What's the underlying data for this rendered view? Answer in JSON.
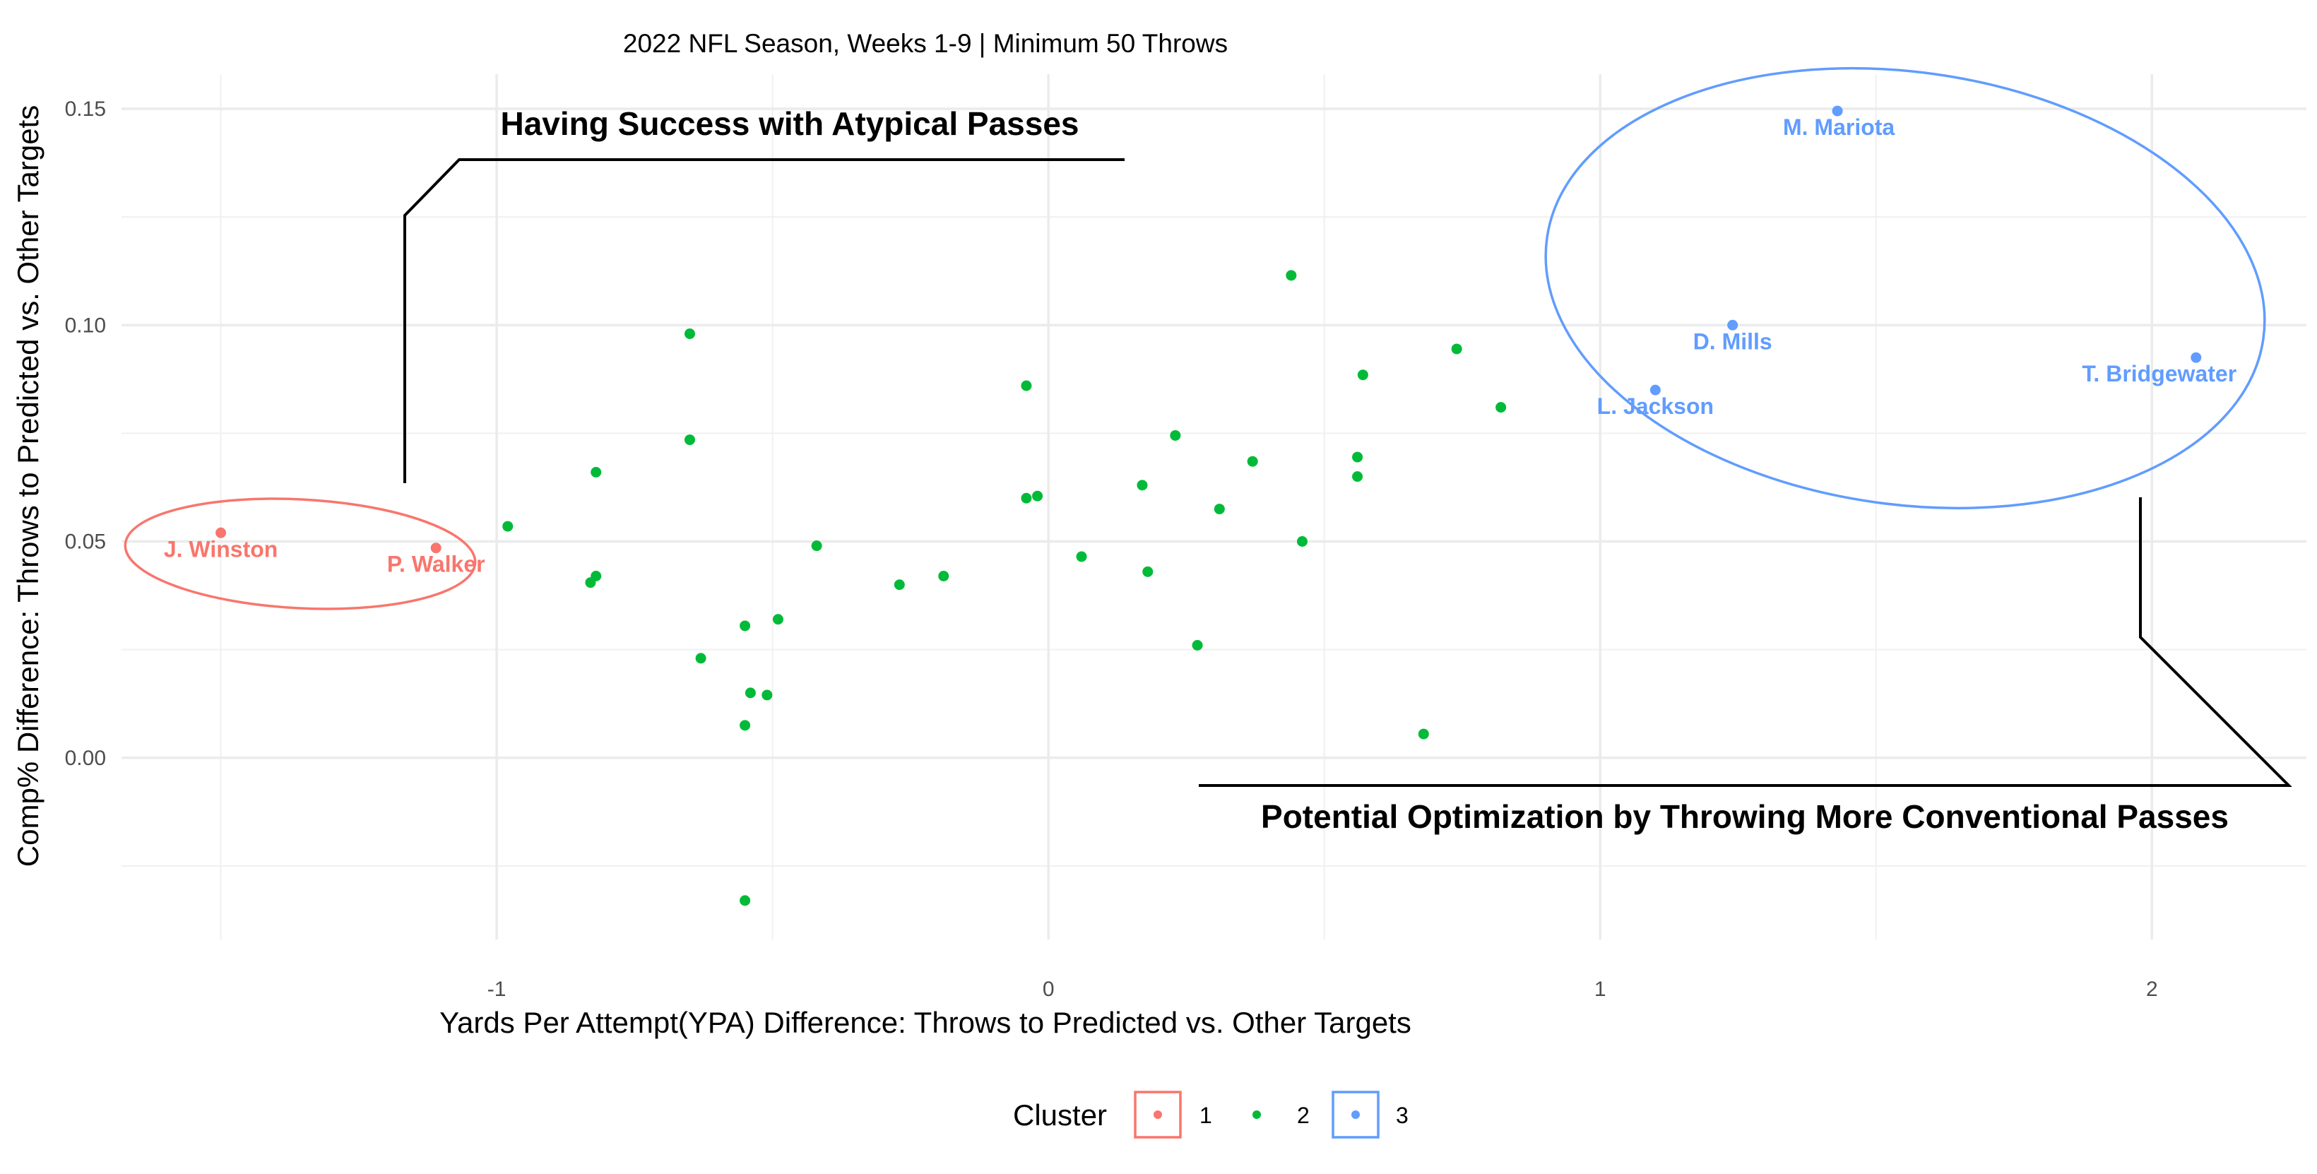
{
  "chart_data": {
    "type": "scatter",
    "title": "2022 NFL Season, Weeks 1-9 | Minimum 50 Throws",
    "xlabel": "Yards Per Attempt(YPA) Difference: Throws to Predicted vs. Other Targets",
    "ylabel": "Comp% Difference: Throws to Predicted vs. Other Targets",
    "xlim": [
      -1.68,
      2.28
    ],
    "ylim": [
      -0.042,
      0.158
    ],
    "x_ticks": [
      -1,
      0,
      1,
      2
    ],
    "x_tick_labels": [
      "-1",
      "0",
      "1",
      "2"
    ],
    "y_ticks": [
      0.0,
      0.05,
      0.1,
      0.15
    ],
    "y_tick_labels": [
      "0.00",
      "0.05",
      "0.10",
      "0.15"
    ],
    "grid": true,
    "legend": {
      "title": "Cluster",
      "position": "bottom",
      "entries": [
        {
          "label": "1",
          "color": "#F8766D",
          "boxed": true
        },
        {
          "label": "2",
          "color": "#00BA38",
          "boxed": false
        },
        {
          "label": "3",
          "color": "#619CFF",
          "boxed": true
        }
      ]
    },
    "annotations": [
      {
        "text": "Having Success with Atypical Passes"
      },
      {
        "text": "Potential Optimization by Throwing More Conventional Passes"
      }
    ],
    "series": [
      {
        "name": "1",
        "color": "#F8766D",
        "points": [
          {
            "x": -1.5,
            "y": 0.052,
            "label": "J. Winston"
          },
          {
            "x": -1.11,
            "y": 0.0485,
            "label": "P. Walker"
          }
        ]
      },
      {
        "name": "2",
        "color": "#00BA38",
        "points": [
          {
            "x": -0.98,
            "y": 0.0535
          },
          {
            "x": -0.82,
            "y": 0.066
          },
          {
            "x": -0.82,
            "y": 0.042
          },
          {
            "x": -0.83,
            "y": 0.0405
          },
          {
            "x": -0.65,
            "y": 0.098
          },
          {
            "x": -0.65,
            "y": 0.0735
          },
          {
            "x": -0.63,
            "y": 0.023
          },
          {
            "x": -0.55,
            "y": 0.0305
          },
          {
            "x": -0.54,
            "y": 0.015
          },
          {
            "x": -0.51,
            "y": 0.0145
          },
          {
            "x": -0.55,
            "y": 0.0075
          },
          {
            "x": -0.49,
            "y": 0.032
          },
          {
            "x": -0.42,
            "y": 0.049
          },
          {
            "x": -0.55,
            "y": -0.033
          },
          {
            "x": -0.27,
            "y": 0.04
          },
          {
            "x": -0.19,
            "y": 0.042
          },
          {
            "x": -0.04,
            "y": 0.086
          },
          {
            "x": -0.04,
            "y": 0.06
          },
          {
            "x": -0.02,
            "y": 0.0605
          },
          {
            "x": 0.06,
            "y": 0.0465
          },
          {
            "x": 0.17,
            "y": 0.063
          },
          {
            "x": 0.18,
            "y": 0.043
          },
          {
            "x": 0.23,
            "y": 0.0745
          },
          {
            "x": 0.27,
            "y": 0.026
          },
          {
            "x": 0.31,
            "y": 0.0575
          },
          {
            "x": 0.37,
            "y": 0.0685
          },
          {
            "x": 0.44,
            "y": 0.1115
          },
          {
            "x": 0.46,
            "y": 0.05
          },
          {
            "x": 0.56,
            "y": 0.0695
          },
          {
            "x": 0.56,
            "y": 0.065
          },
          {
            "x": 0.57,
            "y": 0.0885
          },
          {
            "x": 0.68,
            "y": 0.0055
          },
          {
            "x": 0.74,
            "y": 0.0945
          },
          {
            "x": 0.82,
            "y": 0.081
          }
        ]
      },
      {
        "name": "3",
        "color": "#619CFF",
        "points": [
          {
            "x": 1.43,
            "y": 0.1495,
            "label": "M. Mariota"
          },
          {
            "x": 1.24,
            "y": 0.1,
            "label": "D. Mills"
          },
          {
            "x": 1.1,
            "y": 0.085,
            "label": "L. Jackson"
          },
          {
            "x": 2.08,
            "y": 0.0925,
            "label": "T. Bridgewater"
          }
        ]
      }
    ]
  }
}
